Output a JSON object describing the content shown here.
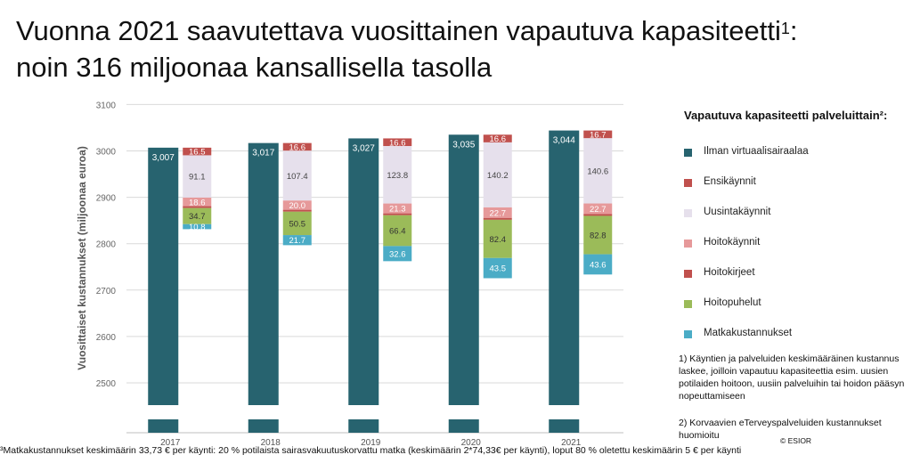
{
  "title": {
    "line1": "Vuonna 2021 saavutettava vuosittainen vapautuva kapasiteetti",
    "sup": "1",
    "line1_end": ":",
    "line2": "noin 316 miljoonaa kansallisella tasolla"
  },
  "chart_data": {
    "type": "bar",
    "title": "",
    "ylabel": "Vuosittaiset kustannukset (miljoonaa euroa)",
    "xlabel": "",
    "categories": [
      "2017",
      "2018",
      "2019",
      "2020",
      "2021"
    ],
    "ylim": [
      2450,
      3100
    ],
    "yticks": [
      2500,
      2600,
      2700,
      2800,
      2900,
      3000,
      3100
    ],
    "axis_break": true,
    "grid": true,
    "total_series": {
      "name": "Ilman virtuaalisairaalaa",
      "values": [
        3007,
        3017,
        3027,
        3035,
        3044
      ],
      "labels": [
        "3,007",
        "3,017",
        "3,027",
        "3,035",
        "3,044"
      ],
      "color": "#27636f"
    },
    "components": [
      {
        "name": "Ensikäynnit",
        "color": "#c0504d",
        "values": [
          16.5,
          16.6,
          16.6,
          16.6,
          16.7
        ],
        "labels": [
          "16.5",
          "16.6",
          "16.6",
          "16.6",
          "16.7"
        ]
      },
      {
        "name": "Uusintakäynnit",
        "color": "#e6e0ec",
        "values": [
          91.1,
          107.4,
          123.8,
          140.2,
          140.6
        ],
        "labels": [
          "91.1",
          "107.4",
          "123.8",
          "140.2",
          "140.6"
        ]
      },
      {
        "name": "Hoitokäynnit",
        "color": "#e6999a",
        "values": [
          18.6,
          20.0,
          21.3,
          22.7,
          22.7
        ],
        "labels": [
          "18.6",
          "20.0",
          "21.3",
          "22.7",
          "22.7"
        ]
      },
      {
        "name": "Hoitokirjeet",
        "color": "#c0504d",
        "values": [
          4,
          4,
          4,
          4,
          4
        ],
        "labels": [
          "",
          "",
          "",
          "",
          ""
        ]
      },
      {
        "name": "Hoitopuhelut",
        "color": "#9bbb59",
        "values": [
          34.7,
          50.5,
          66.4,
          82.4,
          82.8
        ],
        "labels": [
          "34.7",
          "50.5",
          "66.4",
          "82.4",
          "82.8"
        ]
      },
      {
        "name": "Matkakustannukset",
        "color": "#4bacc6",
        "values": [
          10.8,
          21.7,
          32.6,
          43.5,
          43.6
        ],
        "labels": [
          "10.8",
          "21.7",
          "32.6",
          "43.5",
          "43.6"
        ]
      }
    ],
    "legend_position": "right"
  },
  "legend": {
    "title": "Vapautuva kapasiteetti palveluittain²:",
    "items": [
      {
        "label": "Ilman virtuaalisairaalaa",
        "color": "#27636f"
      },
      {
        "label": "Ensikäynnit",
        "color": "#c0504d"
      },
      {
        "label": "Uusintakäynnit",
        "color": "#e6e0ec"
      },
      {
        "label": "Hoitokäynnit",
        "color": "#e6999a"
      },
      {
        "label": "Hoitokirjeet",
        "color": "#c0504d"
      },
      {
        "label": "Hoitopuhelut",
        "color": "#9bbb59"
      },
      {
        "label": "Matkakustannukset",
        "color": "#4bacc6"
      }
    ]
  },
  "notes": {
    "note1": "1) Käyntien ja palveluiden keskimääräinen kustannus laskee,  joilloin vapautuu kapasiteettia esim. uusien potilaiden hoitoon, uusiin palveluihin tai hoidon pääsyn nopeuttamiseen",
    "note2": "2) Korvaavien eTerveyspalveluiden kustannukset huomioitu"
  },
  "footnote": "³Matkakustannukset keskimäärin 33,73 € per käynti: 20 % potilaista sairasvakuutuskorvattu matka (keskimäärin 2*74,33€ per käynti), loput 80 % oletettu keskimäärin 5 € per käynti",
  "copyright": "© ESIOR"
}
